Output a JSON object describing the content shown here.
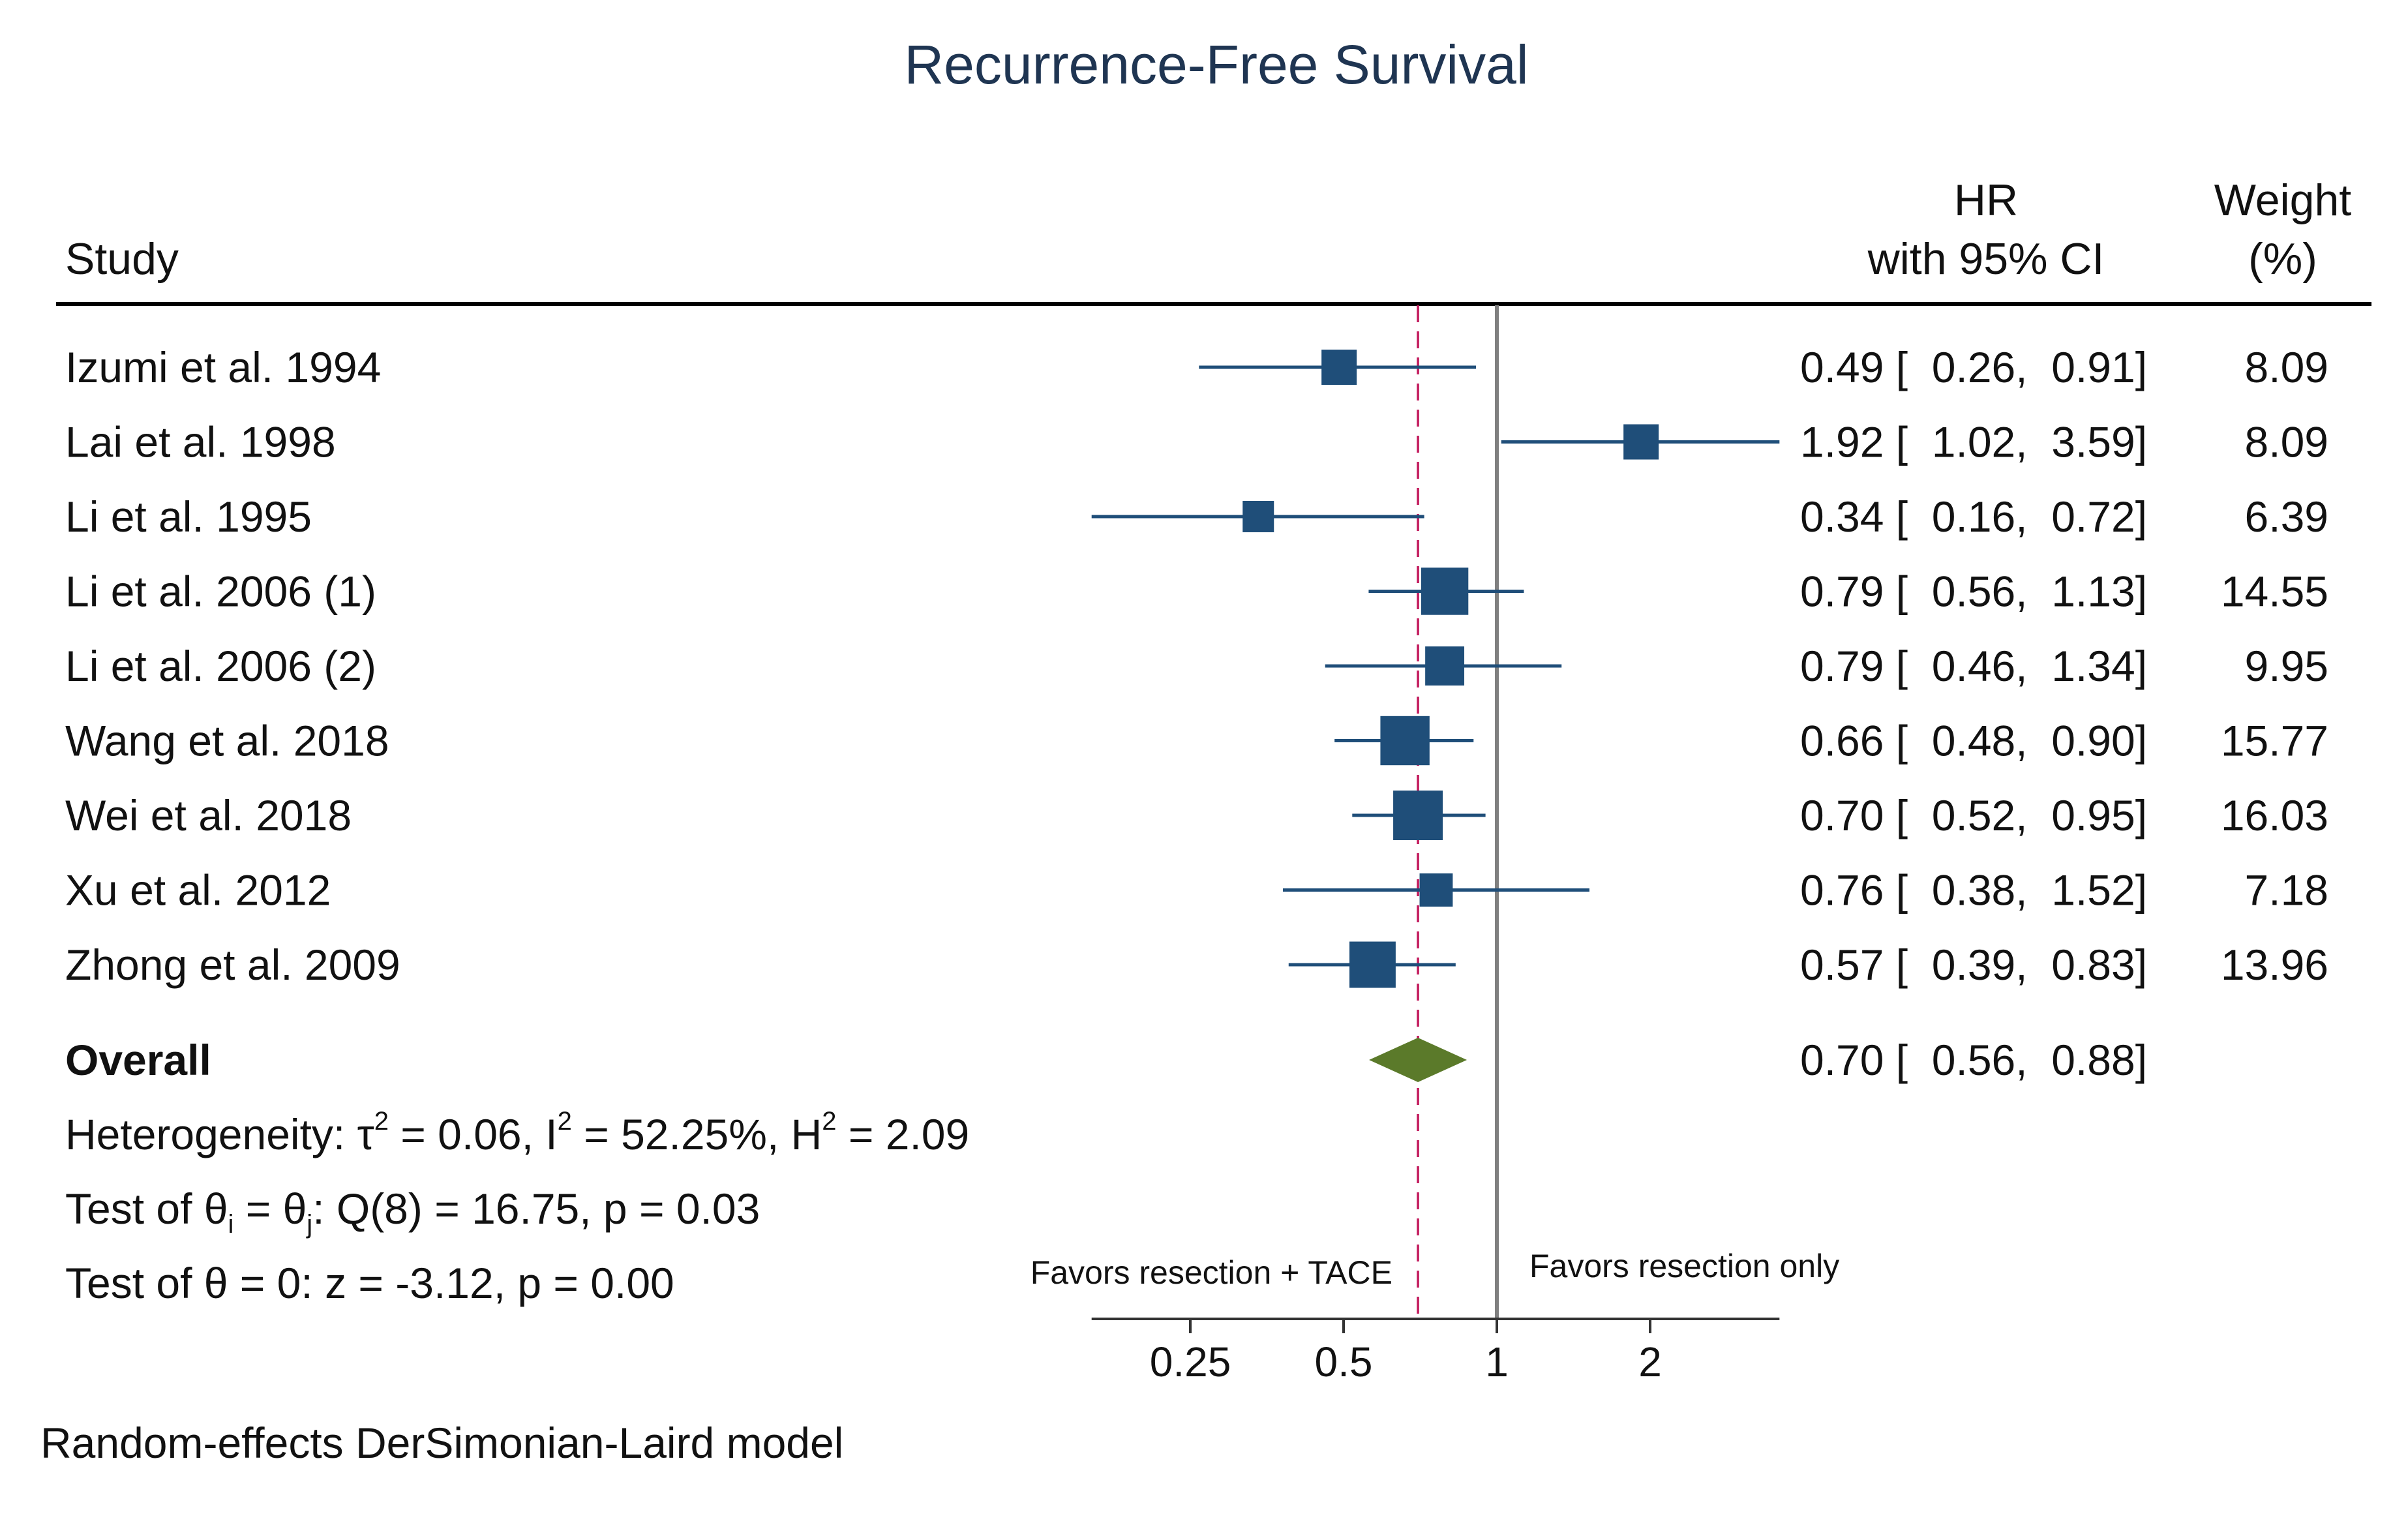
{
  "chart_data": {
    "type": "forest",
    "title": "Recurrence-Free Survival",
    "headers": {
      "study": "Study",
      "hr_line1": "HR",
      "hr_line2": "with 95% CI",
      "weight_line1": "Weight",
      "weight_line2": "(%)"
    },
    "studies": [
      {
        "name": "Izumi et al. 1994",
        "hr": 0.49,
        "lo": 0.26,
        "hi": 0.91,
        "weight": 8.09,
        "ci_text": "0.49 [  0.26,  0.91]",
        "weight_text": "8.09"
      },
      {
        "name": "Lai et al. 1998",
        "hr": 1.92,
        "lo": 1.02,
        "hi": 3.59,
        "weight": 8.09,
        "ci_text": "1.92 [  1.02,  3.59]",
        "weight_text": "8.09"
      },
      {
        "name": "Li et al. 1995",
        "hr": 0.34,
        "lo": 0.16,
        "hi": 0.72,
        "weight": 6.39,
        "ci_text": "0.34 [  0.16,  0.72]",
        "weight_text": "6.39"
      },
      {
        "name": "Li et al. 2006 (1)",
        "hr": 0.79,
        "lo": 0.56,
        "hi": 1.13,
        "weight": 14.55,
        "ci_text": "0.79 [  0.56,  1.13]",
        "weight_text": "14.55"
      },
      {
        "name": "Li et al. 2006 (2)",
        "hr": 0.79,
        "lo": 0.46,
        "hi": 1.34,
        "weight": 9.95,
        "ci_text": "0.79 [  0.46,  1.34]",
        "weight_text": "9.95"
      },
      {
        "name": "Wang et al. 2018",
        "hr": 0.66,
        "lo": 0.48,
        "hi": 0.9,
        "weight": 15.77,
        "ci_text": "0.66 [  0.48,  0.90]",
        "weight_text": "15.77"
      },
      {
        "name": "Wei et al. 2018",
        "hr": 0.7,
        "lo": 0.52,
        "hi": 0.95,
        "weight": 16.03,
        "ci_text": "0.70 [  0.52,  0.95]",
        "weight_text": "16.03"
      },
      {
        "name": "Xu et al. 2012",
        "hr": 0.76,
        "lo": 0.38,
        "hi": 1.52,
        "weight": 7.18,
        "ci_text": "0.76 [  0.38,  1.52]",
        "weight_text": "7.18"
      },
      {
        "name": "Zhong et al. 2009",
        "hr": 0.57,
        "lo": 0.39,
        "hi": 0.83,
        "weight": 13.96,
        "ci_text": "0.57 [  0.39,  0.83]",
        "weight_text": "13.96"
      }
    ],
    "overall": {
      "name": "Overall",
      "hr": 0.7,
      "lo": 0.56,
      "hi": 0.88,
      "ci_text": "0.70 [  0.56,  0.88]"
    },
    "heterogeneity": {
      "prefix": "Heterogeneity: ",
      "tau_symbol": "τ",
      "tau_value": " = 0.06, I",
      "i_value": " = 52.25%, H",
      "h_value": " = 2.09",
      "sup": "2"
    },
    "test_theta_ij": {
      "prefix": "Test of θ",
      "sub_i": "i",
      "mid": " = θ",
      "sub_j": "j",
      "rest": ": Q(8) = 16.75, p = 0.03"
    },
    "test_theta_0": "Test of θ = 0: z = -3.12, p = 0.00",
    "favors_left": "Favors resection + TACE",
    "favors_right": "Favors resection only",
    "x_axis": {
      "scale": "log",
      "ticks": [
        0.25,
        0.5,
        1,
        2
      ],
      "tick_labels": [
        "0.25",
        "0.5",
        "1",
        "2"
      ],
      "range": [
        0.16,
        3.59
      ]
    },
    "null_line": 1,
    "overall_line": 0.7,
    "footer": "Random-effects DerSimonian-Laird model",
    "colors": {
      "marker": "#1f4e79",
      "diamond": "#5b7a2a",
      "overall_line": "#c2185b",
      "null_line": "#808080",
      "text": "#111111",
      "title": "#1f3552"
    }
  }
}
